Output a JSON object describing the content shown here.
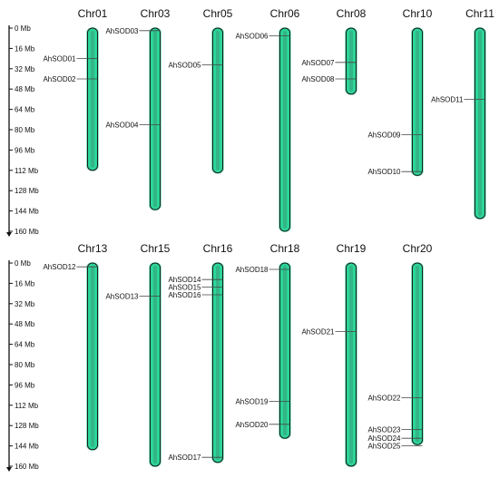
{
  "colors": {
    "chromosome_fill": "#2bd699",
    "chromosome_inner": "#3a9a78",
    "chromosome_stroke": "#1a1a1a",
    "axis": "#111111",
    "leader": "#444444"
  },
  "scale": {
    "unit": "Mb",
    "max": 160,
    "ticks": [
      {
        "value": 0,
        "label": "0 Mb"
      },
      {
        "value": 16,
        "label": "16 Mb"
      },
      {
        "value": 32,
        "label": "32 Mb"
      },
      {
        "value": 48,
        "label": "48 Mb"
      },
      {
        "value": 64,
        "label": "64 Mb"
      },
      {
        "value": 80,
        "label": "80 Mb"
      },
      {
        "value": 96,
        "label": "96 Mb"
      },
      {
        "value": 112,
        "label": "112 Mb"
      },
      {
        "value": 128,
        "label": "128 Mb"
      },
      {
        "value": 144,
        "label": "144 Mb"
      },
      {
        "value": 160,
        "label": "160 Mb"
      }
    ]
  },
  "panels": [
    {
      "chromosomes": [
        {
          "name": "Chr01",
          "length": 112,
          "genes": [
            {
              "name": "AhSOD01",
              "pos": 24
            },
            {
              "name": "AhSOD02",
              "pos": 40
            }
          ]
        },
        {
          "name": "Chr03",
          "length": 143,
          "genes": [
            {
              "name": "AhSOD03",
              "pos": 2
            },
            {
              "name": "AhSOD04",
              "pos": 76
            }
          ]
        },
        {
          "name": "Chr05",
          "length": 114,
          "genes": [
            {
              "name": "AhSOD05",
              "pos": 29
            }
          ]
        },
        {
          "name": "Chr06",
          "length": 160,
          "genes": [
            {
              "name": "AhSOD06",
              "pos": 6
            }
          ]
        },
        {
          "name": "Chr08",
          "length": 52,
          "genes": [
            {
              "name": "AhSOD07",
              "pos": 27
            },
            {
              "name": "AhSOD08",
              "pos": 40
            }
          ]
        },
        {
          "name": "Chr10",
          "length": 116,
          "genes": [
            {
              "name": "AhSOD09",
              "pos": 84
            },
            {
              "name": "AhSOD10",
              "pos": 113
            }
          ]
        },
        {
          "name": "Chr11",
          "length": 150,
          "genes": [
            {
              "name": "AhSOD11",
              "pos": 56
            }
          ]
        }
      ]
    },
    {
      "chromosomes": [
        {
          "name": "Chr13",
          "length": 147,
          "genes": [
            {
              "name": "AhSOD12",
              "pos": 3
            }
          ]
        },
        {
          "name": "Chr15",
          "length": 160,
          "genes": [
            {
              "name": "AhSOD13",
              "pos": 26
            }
          ]
        },
        {
          "name": "Chr16",
          "length": 157,
          "genes": [
            {
              "name": "AhSOD14",
              "pos": 13
            },
            {
              "name": "AhSOD15",
              "pos": 19
            },
            {
              "name": "AhSOD16",
              "pos": 25
            }
          ]
        },
        {
          "name": "Chr18",
          "length": 138,
          "genes": [
            {
              "name": "AhSOD18",
              "pos": 5
            },
            {
              "name": "AhSOD19",
              "pos": 109
            },
            {
              "name": "AhSOD20",
              "pos": 127
            }
          ]
        },
        {
          "name": "Chr19",
          "length": 160,
          "genes": [
            {
              "name": "AhSOD21",
              "pos": 54
            }
          ]
        },
        {
          "name": "Chr20",
          "length": 143,
          "genes": [
            {
              "name": "AhSOD22",
              "pos": 106
            },
            {
              "name": "AhSOD23",
              "pos": 131
            },
            {
              "name": "AhSOD24",
              "pos": 138
            },
            {
              "name": "AhSOD25",
              "pos": 144
            }
          ]
        }
      ],
      "extra_genes": [
        {
          "chr": "Chr16",
          "name": "AhSOD17",
          "pos": 153
        }
      ]
    }
  ]
}
